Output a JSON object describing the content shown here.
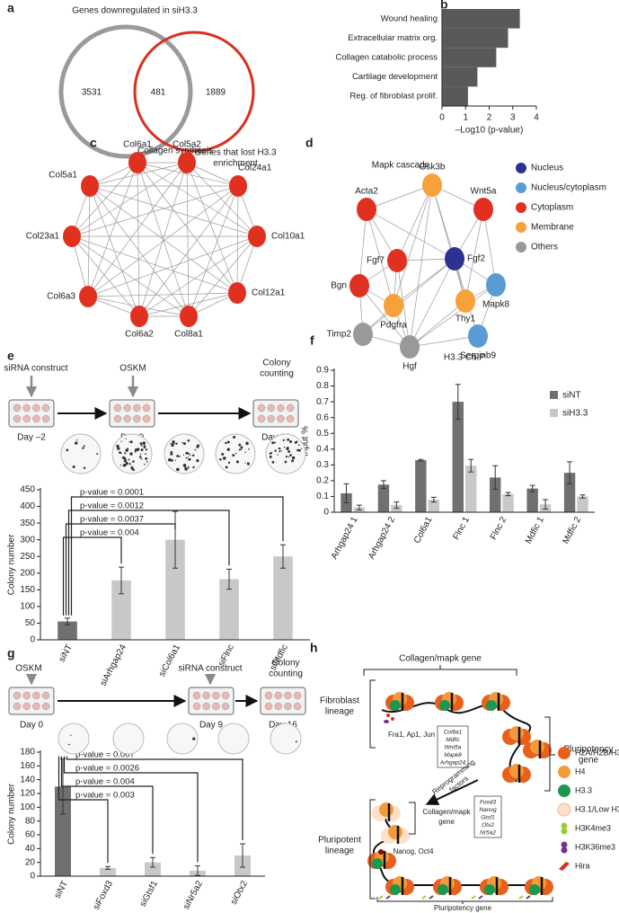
{
  "panel_a": {
    "label": "a",
    "title": "Genes downregulated in siH3.3",
    "left_count": 3531,
    "overlap_count": 481,
    "right_count": 1889,
    "right_caption": [
      "Genes that lost H3.3",
      "enrichment"
    ]
  },
  "chart_data": [
    {
      "label": "b",
      "type": "bar",
      "orientation": "horizontal",
      "categories": [
        "Wound healing",
        "Extracellular matrix org.",
        "Collagen catabolic process",
        "Cartilage development",
        "Reg. of fibroblast prolif."
      ],
      "values": [
        3.3,
        2.8,
        2.3,
        1.5,
        1.1
      ],
      "color": "#595959",
      "xlim": [
        0,
        4
      ],
      "xticks": [
        0,
        1,
        2,
        3,
        4
      ],
      "xlabel": "–Log10 (p-value)"
    },
    {
      "label": "e",
      "type": "bar",
      "categories": [
        "siNT",
        "siArhgap24",
        "siCol6a1",
        "siFlnc",
        "siMdfic"
      ],
      "series": [
        {
          "values": [
            55,
            178,
            300,
            182,
            250
          ],
          "errors": [
            10,
            40,
            85,
            30,
            35
          ],
          "colors": [
            "#707070",
            "#c8c8c8",
            "#c8c8c8",
            "#c8c8c8",
            "#c8c8c8"
          ]
        }
      ],
      "ylim": [
        0,
        450
      ],
      "yticks": [
        0,
        50,
        100,
        150,
        200,
        250,
        300,
        350,
        400,
        450
      ],
      "ylabel": "Colony number",
      "comparison_labels": [
        "p-value = 0.004",
        "p-value = 0.0037",
        "p-value = 0.0012",
        "p-value = 0.0001"
      ]
    },
    {
      "label": "f",
      "type": "bar",
      "title": "H3.3 ChIP",
      "categories": [
        "Arhgap24 1",
        "Arhgap24 2",
        "Col6a1",
        "Flnc 1",
        "Flnc 2",
        "Mdfic 1",
        "Mdfic 2"
      ],
      "series": [
        {
          "name": "siNT",
          "color": "#707070",
          "values": [
            0.12,
            0.175,
            0.33,
            0.7,
            0.22,
            0.15,
            0.25
          ],
          "errors": [
            0.06,
            0.025,
            0.005,
            0.11,
            0.075,
            0.02,
            0.07
          ]
        },
        {
          "name": "siH3.3",
          "color": "#c8c8c8",
          "values": [
            0.03,
            0.045,
            0.08,
            0.295,
            0.115,
            0.05,
            0.1
          ],
          "errors": [
            0.015,
            0.02,
            0.015,
            0.04,
            0.01,
            0.03,
            0.01
          ]
        }
      ],
      "ylim": [
        0,
        0.9
      ],
      "yticks": [
        0,
        0.1,
        0.2,
        0.3,
        0.4,
        0.5,
        0.6,
        0.7,
        0.8,
        0.9
      ],
      "ylabel": "Input %",
      "legend": "upper right"
    },
    {
      "label": "g",
      "type": "bar",
      "categories": [
        "siNT",
        "siFoxd3",
        "siGtsf1",
        "siNr5a2",
        "siOtx2"
      ],
      "series": [
        {
          "values": [
            130,
            12,
            20,
            8,
            30
          ],
          "errors": [
            40,
            2,
            7,
            7,
            17
          ],
          "colors": [
            "#707070",
            "#c8c8c8",
            "#c8c8c8",
            "#c8c8c8",
            "#c8c8c8"
          ]
        }
      ],
      "ylim": [
        0,
        180
      ],
      "yticks": [
        0,
        20,
        40,
        60,
        80,
        100,
        120,
        140,
        160,
        180
      ],
      "ylabel": "Colony number",
      "comparison_labels": [
        "p-value = 0.003",
        "p-value = 0.004",
        "p-value = 0.0026",
        "p-value = 0.007"
      ]
    }
  ],
  "panel_c": {
    "label": "c",
    "title": "Collagen synthesis",
    "node_color": "#e03020",
    "nodes": [
      "Col6a1",
      "Col5a2",
      "Col24a1",
      "Col10a1",
      "Col12a1",
      "Col8a1",
      "Col6a2",
      "Col6a3",
      "Col23a1",
      "Col5a1"
    ]
  },
  "panel_d": {
    "label": "d",
    "title": "Mapk cascade",
    "legend": [
      {
        "name": "Nucleus",
        "color": "#2e3192"
      },
      {
        "name": "Nucleus/cytoplasm",
        "color": "#5b9bd5"
      },
      {
        "name": "Cytoplasm",
        "color": "#e03020"
      },
      {
        "name": "Membrane",
        "color": "#f6a13a"
      },
      {
        "name": "Others",
        "color": "#999999"
      }
    ],
    "nodes": [
      {
        "label": "Gsk3b",
        "group": "Membrane"
      },
      {
        "label": "Wnt5a",
        "group": "Cytoplasm"
      },
      {
        "label": "Acta2",
        "group": "Cytoplasm"
      },
      {
        "label": "Fgf7",
        "group": "Cytoplasm"
      },
      {
        "label": "Fgf2",
        "group": "Nucleus"
      },
      {
        "label": "Mapk8",
        "group": "Nucleus/cytoplasm"
      },
      {
        "label": "Bgn",
        "group": "Cytoplasm"
      },
      {
        "label": "Pdgfra",
        "group": "Membrane"
      },
      {
        "label": "Thy1",
        "group": "Membrane"
      },
      {
        "label": "Timp2",
        "group": "Others"
      },
      {
        "label": "Hgf",
        "group": "Others"
      },
      {
        "label": "Serpinb9",
        "group": "Nucleus/cytoplasm"
      }
    ]
  },
  "panel_e_scheme": {
    "top_labels": [
      [
        "siRNA construct"
      ],
      [
        "OSKM"
      ],
      [
        "Colony",
        "counting"
      ]
    ],
    "days": [
      {
        "text": "Day –2",
        "color": "#e03020"
      },
      {
        "text": "Day 0",
        "color": "#e03020"
      },
      {
        "text": "Day 16",
        "color": "#2ca02c"
      }
    ]
  },
  "panel_g_scheme": {
    "top_labels": [
      [
        "OSKM"
      ],
      [
        "siRNA construct"
      ],
      [
        "Colony",
        "counting"
      ]
    ],
    "days": [
      {
        "text": "Day 0",
        "color": "#e03020"
      },
      {
        "text": "Day 9",
        "color": "#f39a1e"
      },
      {
        "text": "Day 16",
        "color": "#2ca02c"
      }
    ]
  },
  "panel_h": {
    "label": "h",
    "top_bracket": "Collagen/mapk gene",
    "fibroblast_lineage": [
      "Fibroblast",
      "lineage"
    ],
    "fibroblast_factors": "Fra1, Ap1, Jun",
    "fibroblast_genes": [
      "Col6a1",
      "Mdfic",
      "Wnt5a",
      "Mapk8",
      "Arhgap24"
    ],
    "pluripotency_gene_top": [
      "Pluripotency",
      "gene"
    ],
    "reprogramming": [
      "Reprogramming",
      "factors"
    ],
    "lower_bracket": [
      "Collagen/mapk",
      "gene"
    ],
    "pluripotent_genes": [
      "Foxd3",
      "Nanog",
      "Gtsf1",
      "Otx2",
      "Nr5a2"
    ],
    "nanog": "Nanog, Oct4",
    "pluripotent_lineage": [
      "Pluripotent",
      "lineage"
    ],
    "bottom_bracket": "Pluripotency gene",
    "legend": [
      {
        "name": "H2A/H2B/H3.1",
        "color": "#e8601c"
      },
      {
        "name": "H4",
        "color": "#f39a3b"
      },
      {
        "name": "H3.3",
        "color": "#1a9850"
      },
      {
        "name": "H3.1/Low H3.3",
        "color": "#fde0cc"
      },
      {
        "name": "H3K4me3",
        "color": "#9acd32"
      },
      {
        "name": "H3K36me3",
        "color": "#7b2d8e"
      },
      {
        "name": "Hira",
        "color": "#d7301f"
      }
    ]
  }
}
